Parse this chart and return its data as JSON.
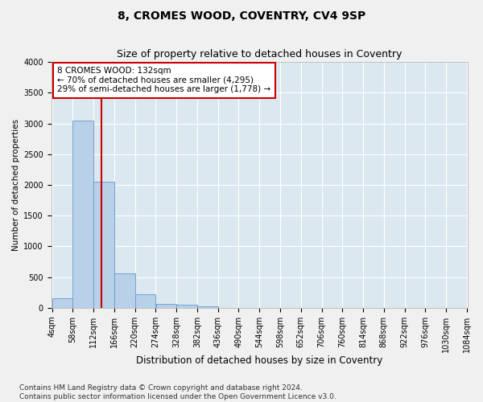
{
  "title": "8, CROMES WOOD, COVENTRY, CV4 9SP",
  "subtitle": "Size of property relative to detached houses in Coventry",
  "xlabel": "Distribution of detached houses by size in Coventry",
  "ylabel": "Number of detached properties",
  "bar_color": "#b8d0e8",
  "bar_edge_color": "#6699cc",
  "background_color": "#dce8f0",
  "grid_color": "#ffffff",
  "fig_background": "#f0f0f0",
  "vline_x": 132,
  "vline_color": "#cc0000",
  "annotation_text": "8 CROMES WOOD: 132sqm\n← 70% of detached houses are smaller (4,295)\n29% of semi-detached houses are larger (1,778) →",
  "annotation_box_color": "#ffffff",
  "annotation_box_edge": "#cc0000",
  "bin_edges": [
    4,
    58,
    112,
    166,
    220,
    274,
    328,
    382,
    436,
    490,
    544,
    598,
    652,
    706,
    760,
    814,
    868,
    922,
    976,
    1030,
    1084
  ],
  "bin_values": [
    150,
    3050,
    2050,
    560,
    220,
    70,
    50,
    30,
    0,
    0,
    0,
    0,
    0,
    0,
    0,
    0,
    0,
    0,
    0,
    0
  ],
  "ylim": [
    0,
    4000
  ],
  "yticks": [
    0,
    500,
    1000,
    1500,
    2000,
    2500,
    3000,
    3500,
    4000
  ],
  "footer_text": "Contains HM Land Registry data © Crown copyright and database right 2024.\nContains public sector information licensed under the Open Government Licence v3.0.",
  "title_fontsize": 10,
  "subtitle_fontsize": 9,
  "xlabel_fontsize": 8.5,
  "ylabel_fontsize": 7.5,
  "tick_fontsize": 7,
  "annotation_fontsize": 7.5,
  "footer_fontsize": 6.5
}
